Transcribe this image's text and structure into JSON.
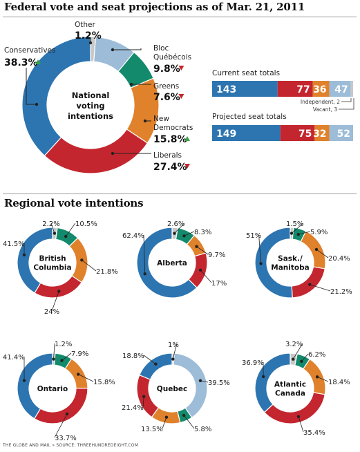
{
  "title": "Federal vote and seat projections as of Mar. 21, 2011",
  "regional_title": "Regional vote intentions",
  "footer": "THE GLOBE AND MAIL  »  SOURCE: THREEHUNDREDEIGHT.COM",
  "colors": {
    "Conservatives": "#2d75b0",
    "Liberals": "#c4262f",
    "New Democrats": "#e0812b",
    "Greens": "#138a6b",
    "Bloc Québécois": "#9cbcd8",
    "Other": "#c8c8c8",
    "arrow_up": "#3aa24a",
    "arrow_down": "#c4262f"
  },
  "national": {
    "center_label": [
      "National",
      "voting",
      "intentions"
    ],
    "labels": [
      {
        "party": "Other",
        "text": [
          "Other"
        ],
        "value": "1.2%",
        "trend": ""
      },
      {
        "party": "Bloc Québécois",
        "text": [
          "Bloc",
          "Québécois"
        ],
        "value": "9.8%",
        "trend": "down"
      },
      {
        "party": "Greens",
        "text": [
          "Greens"
        ],
        "value": "7.6%",
        "trend": "down"
      },
      {
        "party": "New Democrats",
        "text": [
          "New",
          "Democrats"
        ],
        "value": "15.8%",
        "trend": "up"
      },
      {
        "party": "Liberals",
        "text": [
          "Liberals"
        ],
        "value": "27.4%",
        "trend": "down"
      },
      {
        "party": "Conservatives",
        "text": [
          "Conservatives"
        ],
        "value": "38.3%",
        "trend": "up"
      }
    ]
  },
  "seats": {
    "current_label": "Current seat totals",
    "projected_label": "Projected seat totals",
    "note1": "Independent, 2",
    "note2": "Vacant, 3"
  },
  "chart_data": [
    {
      "type": "pie",
      "title": "Federal vote and seat projections as of Mar. 21, 2011",
      "region": "National",
      "slices": [
        {
          "party": "Other",
          "value": 1.2
        },
        {
          "party": "Bloc Québécois",
          "value": 9.8
        },
        {
          "party": "Greens",
          "value": 7.6
        },
        {
          "party": "New Democrats",
          "value": 15.8
        },
        {
          "party": "Liberals",
          "value": 27.4
        },
        {
          "party": "Conservatives",
          "value": 38.3
        }
      ]
    },
    {
      "type": "bar",
      "title": "Current seat totals",
      "segments": [
        {
          "party": "Conservatives",
          "value": 143
        },
        {
          "party": "Liberals",
          "value": 77
        },
        {
          "party": "New Democrats",
          "value": 36
        },
        {
          "party": "Bloc Québécois",
          "value": 47
        },
        {
          "party": "Independent",
          "value": 2
        },
        {
          "party": "Vacant",
          "value": 3
        }
      ]
    },
    {
      "type": "bar",
      "title": "Projected seat totals",
      "segments": [
        {
          "party": "Conservatives",
          "value": 149
        },
        {
          "party": "Liberals",
          "value": 75
        },
        {
          "party": "New Democrats",
          "value": 32
        },
        {
          "party": "Bloc Québécois",
          "value": 52
        }
      ]
    },
    {
      "type": "pie",
      "region": "British Columbia",
      "center_label": [
        "British",
        "Columbia"
      ],
      "slices": [
        {
          "party": "Other",
          "value": 2.2,
          "label": "2.2%"
        },
        {
          "party": "Greens",
          "value": 10.5,
          "label": "10.5%"
        },
        {
          "party": "New Democrats",
          "value": 21.8,
          "label": "21.8%"
        },
        {
          "party": "Liberals",
          "value": 24,
          "label": "24%"
        },
        {
          "party": "Conservatives",
          "value": 41.5,
          "label": "41.5%"
        }
      ]
    },
    {
      "type": "pie",
      "region": "Alberta",
      "center_label": [
        "Alberta"
      ],
      "slices": [
        {
          "party": "Other",
          "value": 2.6,
          "label": "2.6%"
        },
        {
          "party": "Greens",
          "value": 8.3,
          "label": "8.3%"
        },
        {
          "party": "New Democrats",
          "value": 9.7,
          "label": "9.7%"
        },
        {
          "party": "Liberals",
          "value": 17,
          "label": "17%"
        },
        {
          "party": "Conservatives",
          "value": 62.4,
          "label": "62.4%"
        }
      ]
    },
    {
      "type": "pie",
      "region": "Sask./Manitoba",
      "center_label": [
        "Sask./",
        "Manitoba"
      ],
      "slices": [
        {
          "party": "Other",
          "value": 1.5,
          "label": "1.5%"
        },
        {
          "party": "Greens",
          "value": 5.9,
          "label": "5.9%"
        },
        {
          "party": "New Democrats",
          "value": 20.4,
          "label": "20.4%"
        },
        {
          "party": "Liberals",
          "value": 21.2,
          "label": "21.2%"
        },
        {
          "party": "Conservatives",
          "value": 51,
          "label": "51%"
        }
      ]
    },
    {
      "type": "pie",
      "region": "Ontario",
      "center_label": [
        "Ontario"
      ],
      "slices": [
        {
          "party": "Other",
          "value": 1.2,
          "label": "1.2%"
        },
        {
          "party": "Greens",
          "value": 7.9,
          "label": "7.9%"
        },
        {
          "party": "New Democrats",
          "value": 15.8,
          "label": "15.8%"
        },
        {
          "party": "Liberals",
          "value": 33.7,
          "label": "33.7%"
        },
        {
          "party": "Conservatives",
          "value": 41.4,
          "label": "41.4%"
        }
      ]
    },
    {
      "type": "pie",
      "region": "Quebec",
      "center_label": [
        "Quebec"
      ],
      "slices": [
        {
          "party": "Other",
          "value": 1,
          "label": "1%"
        },
        {
          "party": "Bloc Québécois",
          "value": 39.5,
          "label": "39.5%"
        },
        {
          "party": "Greens",
          "value": 5.8,
          "label": "5.8%"
        },
        {
          "party": "New Democrats",
          "value": 13.5,
          "label": "13.5%"
        },
        {
          "party": "Liberals",
          "value": 21.4,
          "label": "21.4%"
        },
        {
          "party": "Conservatives",
          "value": 18.8,
          "label": "18.8%"
        }
      ]
    },
    {
      "type": "pie",
      "region": "Atlantic Canada",
      "center_label": [
        "Atlantic",
        "Canada"
      ],
      "slices": [
        {
          "party": "Other",
          "value": 3.2,
          "label": "3.2%"
        },
        {
          "party": "Greens",
          "value": 6.2,
          "label": "6.2%"
        },
        {
          "party": "New Democrats",
          "value": 18.4,
          "label": "18.4%"
        },
        {
          "party": "Liberals",
          "value": 35.4,
          "label": "35.4%"
        },
        {
          "party": "Conservatives",
          "value": 36.9,
          "label": "36.9%"
        }
      ]
    }
  ]
}
